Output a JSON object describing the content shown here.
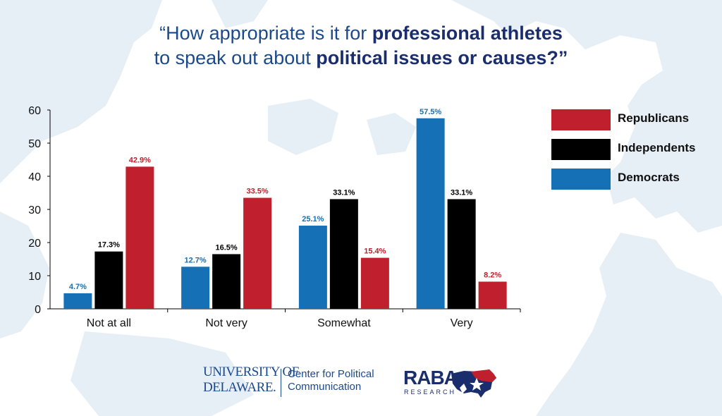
{
  "title": {
    "line1_pre": "“How appropriate is it for ",
    "line1_bold": "professional athletes",
    "line2_pre": "to speak out about ",
    "line2_bold": "political issues or causes?”"
  },
  "legend": [
    {
      "name": "Republicans",
      "color": "#c0202e"
    },
    {
      "name": "Independents",
      "color": "#000000"
    },
    {
      "name": "Democrats",
      "color": "#1670b5"
    }
  ],
  "chart_data": {
    "type": "bar",
    "categories": [
      "Not at all",
      "Not very",
      "Somewhat",
      "Very"
    ],
    "series": [
      {
        "name": "Democrats",
        "color": "#1670b5",
        "values": [
          4.7,
          12.7,
          25.1,
          57.5
        ],
        "labels": [
          "4.7%",
          "12.7%",
          "25.1%",
          "57.5%"
        ]
      },
      {
        "name": "Independents",
        "color": "#000000",
        "values": [
          17.3,
          16.5,
          33.1,
          33.1
        ],
        "labels": [
          "17.3%",
          "16.5%",
          "33.1%",
          "33.1%"
        ]
      },
      {
        "name": "Republicans",
        "color": "#c0202e",
        "values": [
          42.9,
          33.5,
          15.4,
          8.2
        ],
        "labels": [
          "42.9%",
          "33.5%",
          "15.4%",
          "8.2%"
        ]
      }
    ],
    "yticks": [
      "0",
      "10",
      "20",
      "30",
      "40",
      "50",
      "60"
    ],
    "ylim": [
      0,
      60
    ],
    "grid": false,
    "legend_position": "right"
  },
  "footer": {
    "ud_line1": "UNIVERSITY OF",
    "ud_line2": "DELAWARE.",
    "cpc_line1": "Center for Political",
    "cpc_line2": "Communication",
    "raba_word": "RABA",
    "raba_sub": "RESEARCH"
  }
}
